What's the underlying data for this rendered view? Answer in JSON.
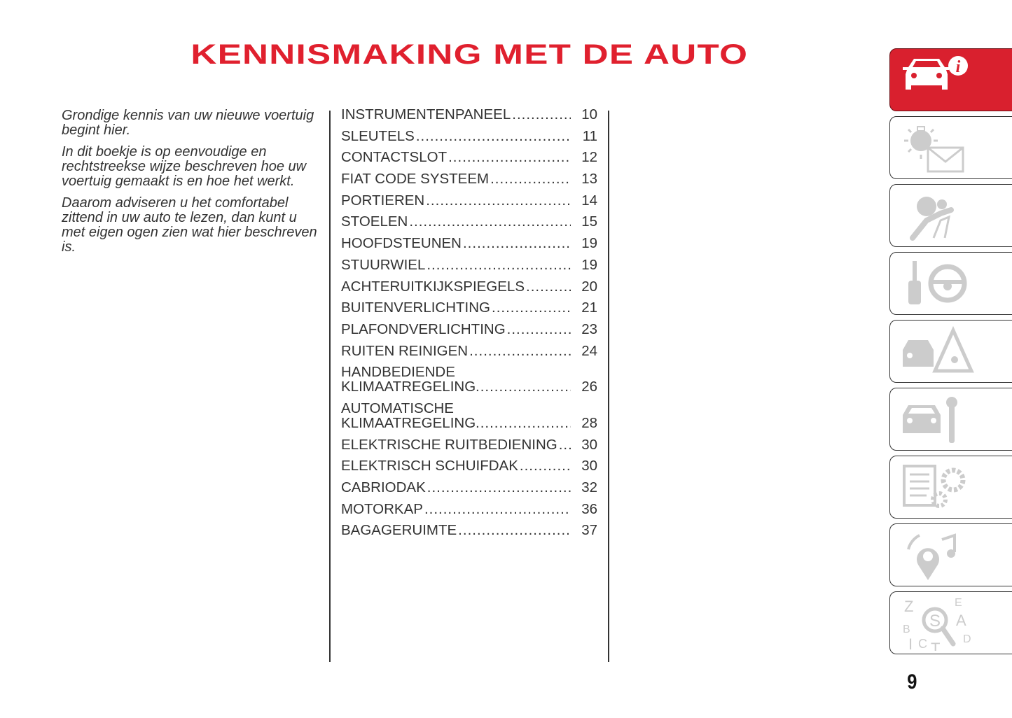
{
  "title": "KENNISMAKING MET DE AUTO",
  "intro": [
    "Grondige kennis van uw nieuwe voertuig begint hier.",
    "In dit boekje is op eenvoudige en rechtstreekse wijze beschreven hoe uw voertuig gemaakt is en hoe het werkt.",
    "Daarom adviseren u het comfortabel zittend in uw auto te lezen, dan kunt u met eigen ogen zien wat hier beschreven is."
  ],
  "toc": [
    {
      "label": "INSTRUMENTENPANEEL",
      "page": "10"
    },
    {
      "label": "SLEUTELS",
      "page": "11"
    },
    {
      "label": "CONTACTSLOT",
      "page": "12"
    },
    {
      "label": "FIAT CODE SYSTEEM",
      "page": "13"
    },
    {
      "label": "PORTIEREN",
      "page": "14"
    },
    {
      "label": "STOELEN",
      "page": "15"
    },
    {
      "label": "HOOFDSTEUNEN",
      "page": "19"
    },
    {
      "label": "STUURWIEL",
      "page": "19"
    },
    {
      "label": "ACHTERUITKIJKSPIEGELS",
      "page": "20"
    },
    {
      "label": "BUITENVERLICHTING",
      "page": "21"
    },
    {
      "label": "PLAFONDVERLICHTING",
      "page": "23"
    },
    {
      "label": "RUITEN REINIGEN",
      "page": "24"
    },
    {
      "label": "HANDBEDIENDE KLIMAATREGELING",
      "page": "26"
    },
    {
      "label": "AUTOMATISCHE KLIMAATREGELING",
      "page": "28"
    },
    {
      "label": "ELEKTRISCHE RUITBEDIENING",
      "page": "30"
    },
    {
      "label": "ELEKTRISCH SCHUIFDAK",
      "page": "30"
    },
    {
      "label": "CABRIODAK",
      "page": "32"
    },
    {
      "label": "MOTORKAP",
      "page": "36"
    },
    {
      "label": "BAGAGERUIMTE",
      "page": "37"
    }
  ],
  "tabs": [
    {
      "icon": "car-info-icon",
      "active": true
    },
    {
      "icon": "warning-light-message-icon",
      "active": false
    },
    {
      "icon": "airbag-seatbelt-icon",
      "active": false
    },
    {
      "icon": "key-steering-wheel-icon",
      "active": false
    },
    {
      "icon": "car-emergency-icon",
      "active": false
    },
    {
      "icon": "car-maintenance-icon",
      "active": false
    },
    {
      "icon": "technical-data-icon",
      "active": false
    },
    {
      "icon": "multimedia-icon",
      "active": false
    },
    {
      "icon": "index-search-icon",
      "active": false
    }
  ],
  "index_letters": [
    "Z",
    "E",
    "B",
    "A",
    "D",
    "I",
    "C",
    "T",
    "S"
  ],
  "page_number": "9",
  "colors": {
    "accent": "#d9202e",
    "icon_gray": "#cccccc"
  }
}
